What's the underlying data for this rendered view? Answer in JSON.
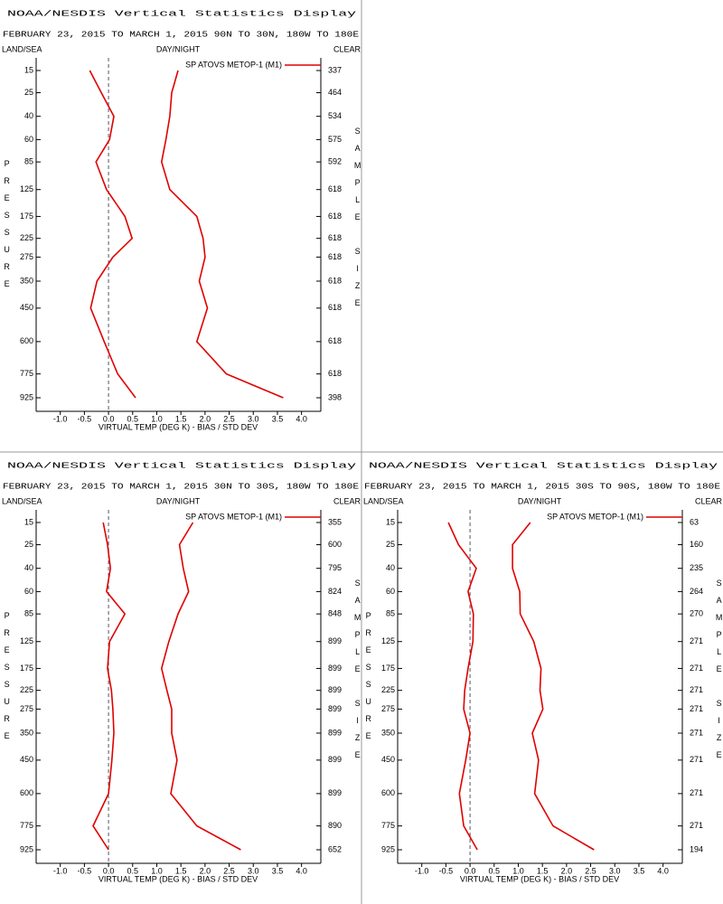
{
  "chart_data": [
    {
      "type": "line",
      "title": "NOAA/NESDIS Vertical Statistics Display",
      "subtitle": "FEBRUARY 23, 2015 TO MARCH 1, 2015  90N TO 30N, 180W TO 180E",
      "header": [
        "LAND/SEA",
        "DAY/NIGHT",
        "CLEAR"
      ],
      "xlabel": "VIRTUAL TEMP (DEG K) - BIAS / STD DEV",
      "ylabel": "PRESSURE",
      "y2label": "SAMPLE SIZE",
      "categories": [
        15,
        25,
        40,
        60,
        85,
        125,
        175,
        225,
        275,
        350,
        450,
        600,
        775,
        925
      ],
      "sample_size": [
        337,
        464,
        534,
        575,
        592,
        618,
        618,
        618,
        618,
        618,
        618,
        618,
        618,
        398
      ],
      "series": [
        {
          "name": "SP ATOVS METOP-1 (M1)",
          "color": "#e00000",
          "values": [
            -0.39,
            -0.15,
            0.11,
            0.02,
            -0.26,
            -0.04,
            0.34,
            0.49,
            0.09,
            -0.24,
            -0.37,
            -0.09,
            0.19,
            0.56
          ]
        },
        {
          "color": "#e00000",
          "values": [
            1.44,
            1.31,
            1.27,
            1.19,
            1.1,
            1.27,
            1.83,
            1.96,
            2.0,
            1.88,
            2.05,
            1.83,
            2.44,
            3.62
          ]
        }
      ],
      "xlim": [
        -1.5,
        4.4
      ],
      "xticks": [
        {
          "value": -1,
          "label": "-1.0"
        },
        -0.5,
        {
          "value": 0,
          "label": "0.0"
        },
        0.5,
        {
          "value": 1,
          "label": "1.0"
        },
        1.5,
        {
          "value": 2,
          "label": "2.0"
        },
        2.5,
        {
          "value": 3,
          "label": "3.0"
        },
        3.5,
        {
          "value": 4,
          "label": "4.0"
        }
      ],
      "zero_line": true
    },
    {
      "type": "line",
      "title": "NOAA/NESDIS Vertical Statistics Display",
      "subtitle": "FEBRUARY 23, 2015 TO MARCH 1, 2015  30N TO 30S, 180W TO 180E",
      "header": [
        "LAND/SEA",
        "DAY/NIGHT",
        "CLEAR"
      ],
      "xlabel": "VIRTUAL TEMP (DEG K) - BIAS / STD DEV",
      "ylabel": "PRESSURE",
      "y2label": "SAMPLE SIZE",
      "categories": [
        15,
        25,
        40,
        60,
        85,
        125,
        175,
        225,
        275,
        350,
        450,
        600,
        775,
        925
      ],
      "sample_size": [
        355,
        600,
        795,
        824,
        848,
        899,
        899,
        899,
        899,
        899,
        899,
        899,
        890,
        652
      ],
      "series": [
        {
          "name": "SP ATOVS METOP-1 (M1)",
          "color": "#e00000",
          "values": [
            -0.11,
            -0.02,
            0.04,
            -0.04,
            0.34,
            0.02,
            -0.02,
            0.06,
            0.09,
            0.11,
            0.07,
            0.0,
            -0.32,
            0.0
          ]
        },
        {
          "color": "#e00000",
          "values": [
            1.75,
            1.47,
            1.55,
            1.66,
            1.44,
            1.25,
            1.1,
            1.21,
            1.31,
            1.31,
            1.42,
            1.29,
            1.83,
            2.74
          ]
        }
      ],
      "xlim": [
        -1.5,
        4.4
      ],
      "xticks": [
        {
          "value": -1,
          "label": "-1.0"
        },
        -0.5,
        {
          "value": 0,
          "label": "0.0"
        },
        0.5,
        {
          "value": 1,
          "label": "1.0"
        },
        1.5,
        {
          "value": 2,
          "label": "2.0"
        },
        2.5,
        {
          "value": 3,
          "label": "3.0"
        },
        3.5,
        {
          "value": 4,
          "label": "4.0"
        }
      ],
      "zero_line": true
    },
    {
      "type": "line",
      "title": "NOAA/NESDIS Vertical Statistics Display",
      "subtitle": "FEBRUARY 23, 2015 TO MARCH 1, 2015  30S TO 90S, 180W TO 180E",
      "header": [
        "LAND/SEA",
        "DAY/NIGHT",
        "CLEAR"
      ],
      "xlabel": "VIRTUAL TEMP (DEG K) - BIAS / STD DEV",
      "ylabel": "PRESSURE",
      "y2label": "SAMPLE SIZE",
      "categories": [
        15,
        25,
        40,
        60,
        85,
        125,
        175,
        225,
        275,
        350,
        450,
        600,
        775,
        925
      ],
      "sample_size": [
        63,
        160,
        235,
        264,
        270,
        271,
        271,
        271,
        271,
        271,
        271,
        271,
        271,
        194
      ],
      "series": [
        {
          "name": "SP ATOVS METOP-1 (M1)",
          "color": "#e00000",
          "values": [
            -0.45,
            -0.24,
            0.13,
            -0.04,
            0.07,
            0.06,
            -0.04,
            -0.11,
            -0.13,
            0.0,
            -0.09,
            -0.22,
            -0.13,
            0.15
          ]
        },
        {
          "color": "#e00000",
          "values": [
            1.25,
            0.88,
            0.88,
            1.03,
            1.04,
            1.32,
            1.47,
            1.45,
            1.51,
            1.29,
            1.42,
            1.34,
            1.72,
            2.57
          ]
        }
      ],
      "xlim": [
        -1.5,
        4.4
      ],
      "xticks": [
        {
          "value": -1,
          "label": "-1.0"
        },
        -0.5,
        {
          "value": 0,
          "label": "0.0"
        },
        0.5,
        {
          "value": 1,
          "label": "1.0"
        },
        1.5,
        {
          "value": 2,
          "label": "2.0"
        },
        2.5,
        {
          "value": 3,
          "label": "3.0"
        },
        3.5,
        {
          "value": 4,
          "label": "4.0"
        }
      ],
      "zero_line": true
    }
  ]
}
